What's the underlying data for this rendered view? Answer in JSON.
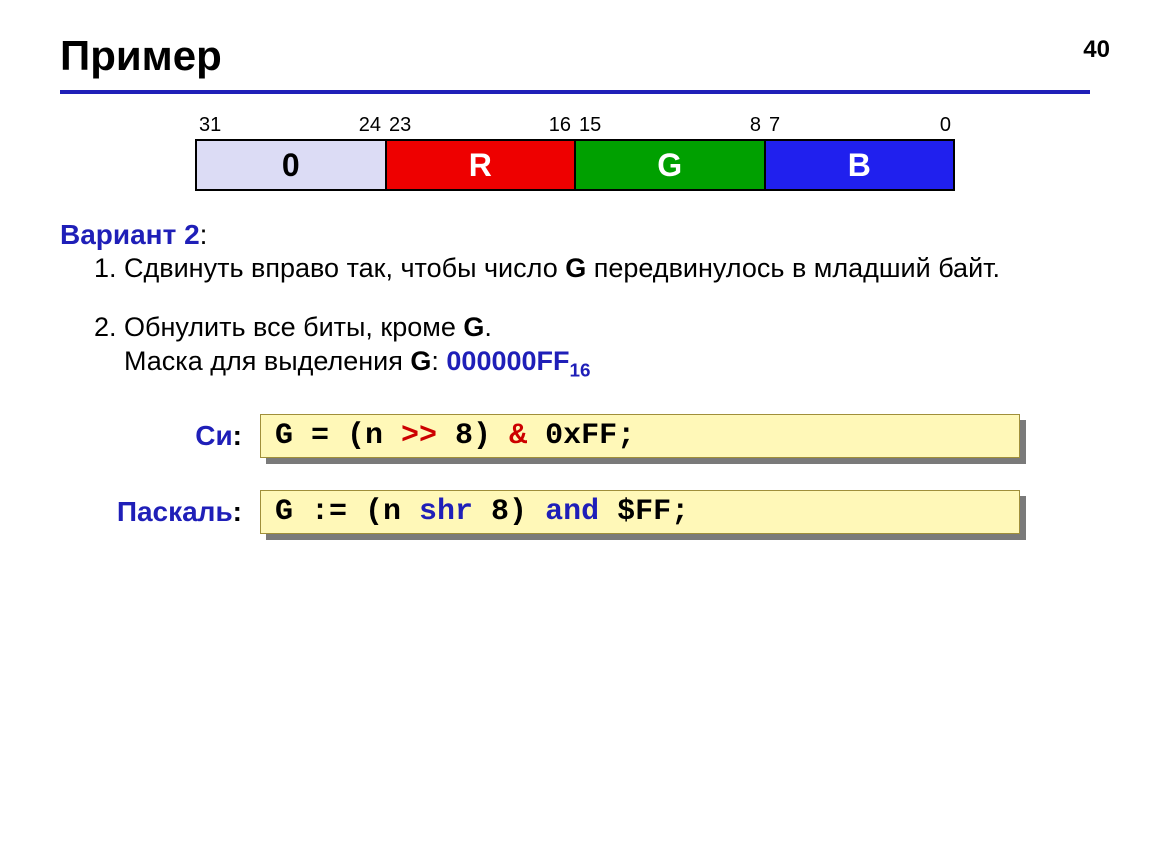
{
  "page_number": "40",
  "title": "Пример",
  "divider_color": "#1f1fb8",
  "byte_diagram": {
    "cells": [
      {
        "label": "0",
        "bg": "#dcdcf5",
        "fg": "#000000",
        "bit_hi": "31",
        "bit_lo": "24"
      },
      {
        "label": "R",
        "bg": "#ee0000",
        "fg": "#ffffff",
        "bit_hi": "23",
        "bit_lo": "16"
      },
      {
        "label": "G",
        "bg": "#00a000",
        "fg": "#ffffff",
        "bit_hi": "15",
        "bit_lo": "8"
      },
      {
        "label": "B",
        "bg": "#2020ee",
        "fg": "#ffffff",
        "bit_hi": "7",
        "bit_lo": "0"
      }
    ]
  },
  "variant_label": "Вариант 2",
  "steps": {
    "s1_num": "1.",
    "s1_a": "Сдвинуть вправо так, чтобы число ",
    "s1_g": "G",
    "s1_b": " передвинулось в младший байт.",
    "s2_num": "2.",
    "s2_a": "Обнулить все биты, кроме ",
    "s2_g": "G",
    "s2_b": ".",
    "s2_c": "Маска для выделения ",
    "s2_g2": "G",
    "s2_d": ": ",
    "s2_mask": "000000FF",
    "s2_mask_sub": "16"
  },
  "code": {
    "c_label": "Си",
    "pascal_label": "Паскаль",
    "c": {
      "p1": "G = (n ",
      "op1": ">>",
      "p2": " 8) ",
      "op2": "&",
      "p3": " 0xFF;"
    },
    "pascal": {
      "p1": "G := (n ",
      "kw1": "shr",
      "p2": " 8) ",
      "kw2": "and",
      "p3": " $FF;"
    },
    "box_bg": "#fff8b8",
    "box_border": "#a08f3a",
    "shadow": "#7a7a7a"
  }
}
